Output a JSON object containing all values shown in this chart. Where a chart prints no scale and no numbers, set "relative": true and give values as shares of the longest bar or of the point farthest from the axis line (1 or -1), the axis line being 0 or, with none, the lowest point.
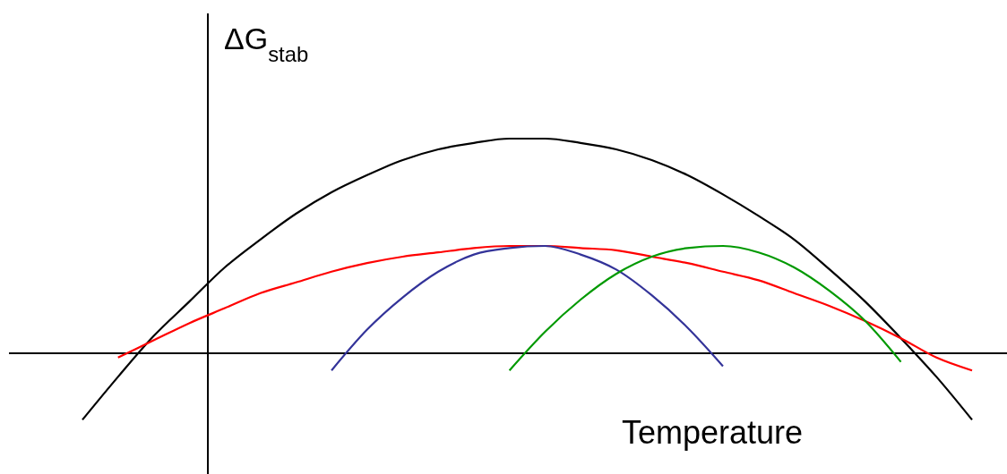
{
  "chart_data": {
    "type": "line",
    "relative": true,
    "ylabel": "ΔG$_{stab}$",
    "xlabel": "Temperature",
    "line_style": "solid",
    "categories": [
      null,
      null,
      null,
      null,
      null,
      null,
      null,
      null,
      null,
      null,
      null,
      null,
      null,
      null,
      null,
      null,
      null,
      null,
      null,
      null,
      null,
      null,
      null,
      null,
      null,
      null
    ],
    "series": [
      {
        "color": "#000000",
        "values": [
          -0.31,
          -0.11,
          0.08,
          0.24,
          0.4,
          0.53,
          0.65,
          0.75,
          0.83,
          0.9,
          0.95,
          0.98,
          1.0,
          1.0,
          0.98,
          0.95,
          0.9,
          0.83,
          0.74,
          0.64,
          0.53,
          0.39,
          0.24,
          0.07,
          -0.11,
          -0.31
        ]
      },
      {
        "color": "#ff0000",
        "values": [
          null,
          -0.02,
          0.06,
          0.14,
          0.21,
          0.28,
          0.33,
          0.38,
          0.42,
          0.45,
          0.47,
          0.49,
          0.5,
          0.5,
          0.49,
          0.48,
          0.45,
          0.42,
          0.38,
          0.34,
          0.28,
          0.22,
          0.15,
          0.07,
          -0.02,
          -0.08
        ]
      },
      {
        "color": "#333399",
        "values": [
          null,
          null,
          null,
          null,
          null,
          null,
          null,
          -0.08,
          0.11,
          0.26,
          0.38,
          0.46,
          0.49,
          0.5,
          0.46,
          0.39,
          0.27,
          0.12,
          -0.06,
          null,
          null,
          null,
          null,
          null,
          null,
          null
        ]
      },
      {
        "color": "#009900",
        "values": [
          null,
          null,
          null,
          null,
          null,
          null,
          null,
          null,
          null,
          null,
          null,
          null,
          -0.08,
          0.1,
          0.25,
          0.37,
          0.45,
          0.49,
          0.5,
          0.47,
          0.4,
          0.29,
          0.15,
          -0.04,
          null,
          null
        ]
      }
    ]
  }
}
